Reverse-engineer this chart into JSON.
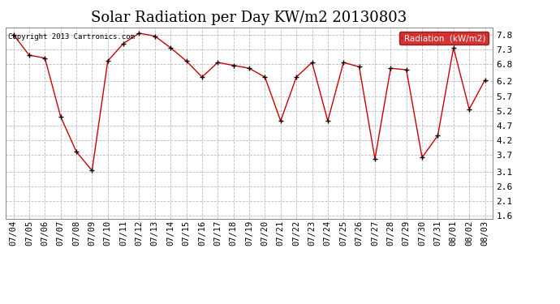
{
  "title": "Solar Radiation per Day KW/m2 20130803",
  "copyright": "Copyright 2013 Cartronics.com",
  "legend_label": "Radiation  (kW/m2)",
  "dates": [
    "07/04",
    "07/05",
    "07/06",
    "07/07",
    "07/08",
    "07/09",
    "07/10",
    "07/11",
    "07/12",
    "07/13",
    "07/14",
    "07/15",
    "07/16",
    "07/17",
    "07/18",
    "07/19",
    "07/20",
    "07/21",
    "07/22",
    "07/23",
    "07/24",
    "07/25",
    "07/26",
    "07/27",
    "07/28",
    "07/29",
    "07/30",
    "07/31",
    "08/01",
    "08/02",
    "08/03"
  ],
  "values": [
    7.8,
    7.1,
    7.0,
    5.0,
    3.8,
    3.15,
    6.9,
    7.5,
    7.85,
    7.75,
    7.35,
    6.9,
    6.35,
    6.85,
    6.75,
    6.65,
    6.35,
    4.85,
    6.35,
    6.85,
    4.85,
    6.85,
    6.7,
    3.55,
    6.65,
    6.6,
    3.6,
    4.35,
    7.35,
    5.25,
    6.25
  ],
  "line_color": "#cc0000",
  "marker_color": "#000000",
  "background_color": "#ffffff",
  "grid_color": "#bbbbbb",
  "title_fontsize": 13,
  "tick_fontsize": 7.5,
  "ylim": [
    1.5,
    8.05
  ],
  "yticks": [
    1.6,
    2.1,
    2.6,
    3.1,
    3.7,
    4.2,
    4.7,
    5.2,
    5.7,
    6.2,
    6.8,
    7.3,
    7.8
  ],
  "legend_bg": "#cc0000",
  "legend_text_color": "#ffffff"
}
